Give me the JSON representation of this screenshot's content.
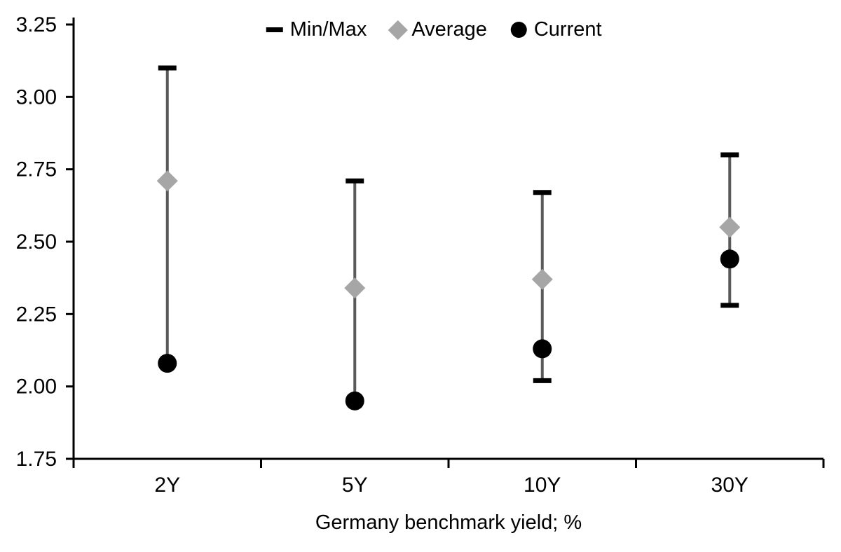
{
  "chart_data": {
    "type": "scatter",
    "subtype": "range-min-max-average-current",
    "title": "",
    "xlabel": "Germany benchmark yield; %",
    "ylabel": "",
    "ylim": [
      1.75,
      3.25
    ],
    "ytick_step": 0.25,
    "yticks": [
      1.75,
      2.0,
      2.25,
      2.5,
      2.75,
      3.0,
      3.25
    ],
    "grid": false,
    "legend_position": "top-center",
    "categories": [
      "2Y",
      "5Y",
      "10Y",
      "30Y"
    ],
    "series": [
      {
        "name": "Min",
        "values": [
          2.08,
          1.95,
          2.02,
          2.28
        ]
      },
      {
        "name": "Max",
        "values": [
          3.1,
          2.71,
          2.67,
          2.8
        ]
      },
      {
        "name": "Average",
        "values": [
          2.71,
          2.34,
          2.37,
          2.55
        ]
      },
      {
        "name": "Current",
        "values": [
          2.08,
          1.95,
          2.13,
          2.44
        ]
      }
    ],
    "legend": [
      {
        "label": "Min/Max",
        "marker": "dash"
      },
      {
        "label": "Average",
        "marker": "diamond"
      },
      {
        "label": "Current",
        "marker": "circle"
      }
    ],
    "colors": {
      "axis": "#000000",
      "range_line": "#595959",
      "cap": "#000000",
      "average_fill": "#a6a6a6",
      "current_fill": "#000000",
      "text": "#000000"
    }
  }
}
